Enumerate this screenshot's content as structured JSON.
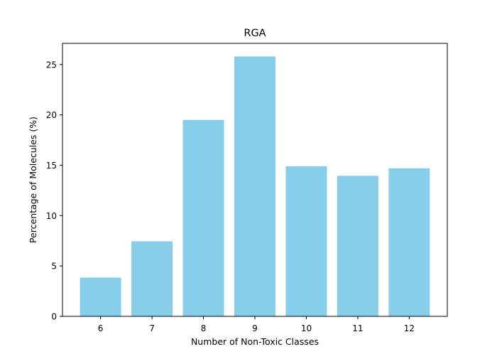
{
  "chart_data": {
    "type": "bar",
    "title": "RGA",
    "xlabel": "Number of Non-Toxic Classes",
    "ylabel": "Percentage of Molecules (%)",
    "categories": [
      "6",
      "7",
      "8",
      "9",
      "10",
      "11",
      "12"
    ],
    "values": [
      3.85,
      7.45,
      19.5,
      25.8,
      14.9,
      13.95,
      14.7
    ],
    "ylim": [
      0,
      27.1
    ],
    "yticks": [
      0,
      5,
      10,
      15,
      20,
      25
    ],
    "grid": false,
    "legend": "none",
    "bar_color": "#87CEEB"
  }
}
